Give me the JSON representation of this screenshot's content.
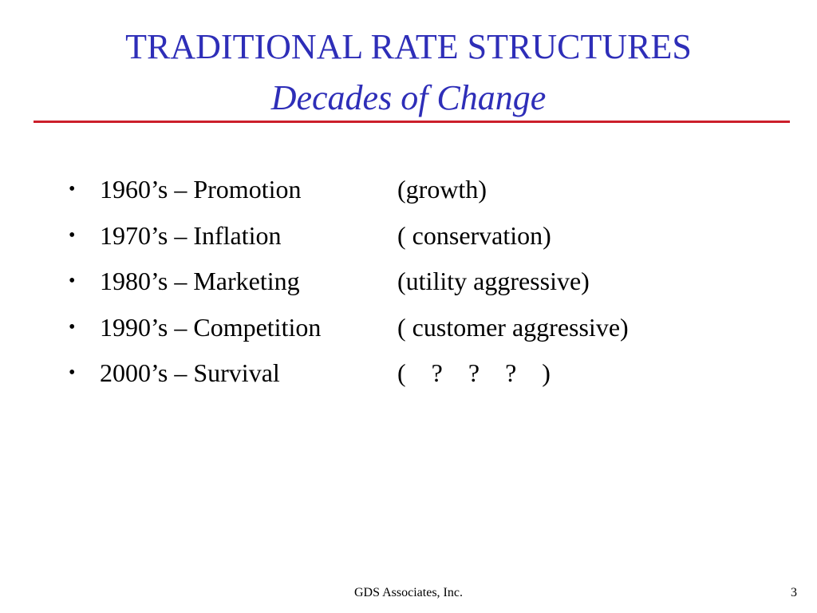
{
  "slide": {
    "title": "TRADITIONAL RATE STRUCTURES",
    "subtitle": "Decades of Change",
    "bullets": [
      {
        "label": "1960’s – Promotion",
        "note": "(growth)"
      },
      {
        "label": "1970’s – Inflation",
        "note": "( conservation)"
      },
      {
        "label": "1980’s – Marketing",
        "note": "(utility aggressive)"
      },
      {
        "label": "1990’s – Competition",
        "note": "( customer aggressive)"
      },
      {
        "label": "2000’s – Survival",
        "note": "(    ?    ?    ?    )"
      }
    ],
    "bullet_symbol": "•"
  },
  "footer": {
    "company": "GDS Associates, Inc.",
    "page_number": "3"
  },
  "colors": {
    "title": "#2e2eb8",
    "rule": "#cc1f2b",
    "text": "#000000",
    "background": "#ffffff"
  }
}
